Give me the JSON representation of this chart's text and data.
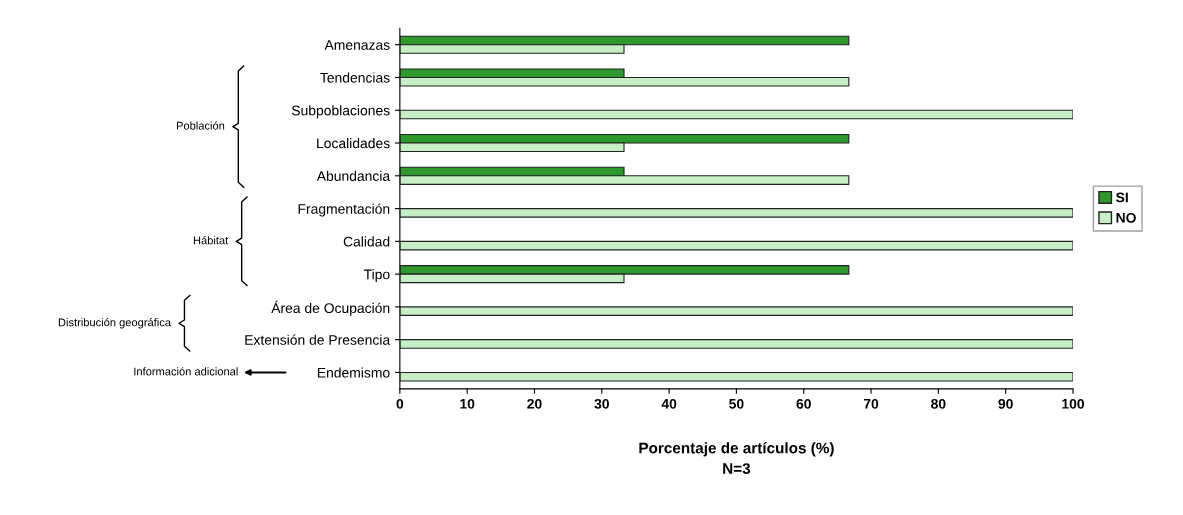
{
  "chart_data": {
    "type": "bar",
    "orientation": "horizontal",
    "categories": [
      "Amenazas",
      "Tendencias",
      "Subpoblaciones",
      "Localidades",
      "Abundancia",
      "Fragmentación",
      "Calidad",
      "Tipo",
      "Área de Ocupación",
      "Extensión de Presencia",
      "Endemismo"
    ],
    "series": [
      {
        "name": "SI",
        "color": "#2e9a2e",
        "values": [
          66.7,
          33.3,
          0,
          66.7,
          33.3,
          0,
          0,
          66.7,
          0,
          0,
          0
        ]
      },
      {
        "name": "NO",
        "color": "#c6efc6",
        "values": [
          33.3,
          66.7,
          100,
          33.3,
          66.7,
          100,
          100,
          33.3,
          100,
          100,
          100
        ]
      }
    ],
    "xlabel": "Porcentaje de artículos (%)",
    "xlim": [
      0,
      100
    ],
    "xticks": [
      0,
      10,
      20,
      30,
      40,
      50,
      60,
      70,
      80,
      90,
      100
    ],
    "annotations": [
      "N=3",
      "Población",
      "Hábitat",
      "Distribución geográfica",
      "Información adicional"
    ],
    "legend": "right",
    "grid": false
  }
}
